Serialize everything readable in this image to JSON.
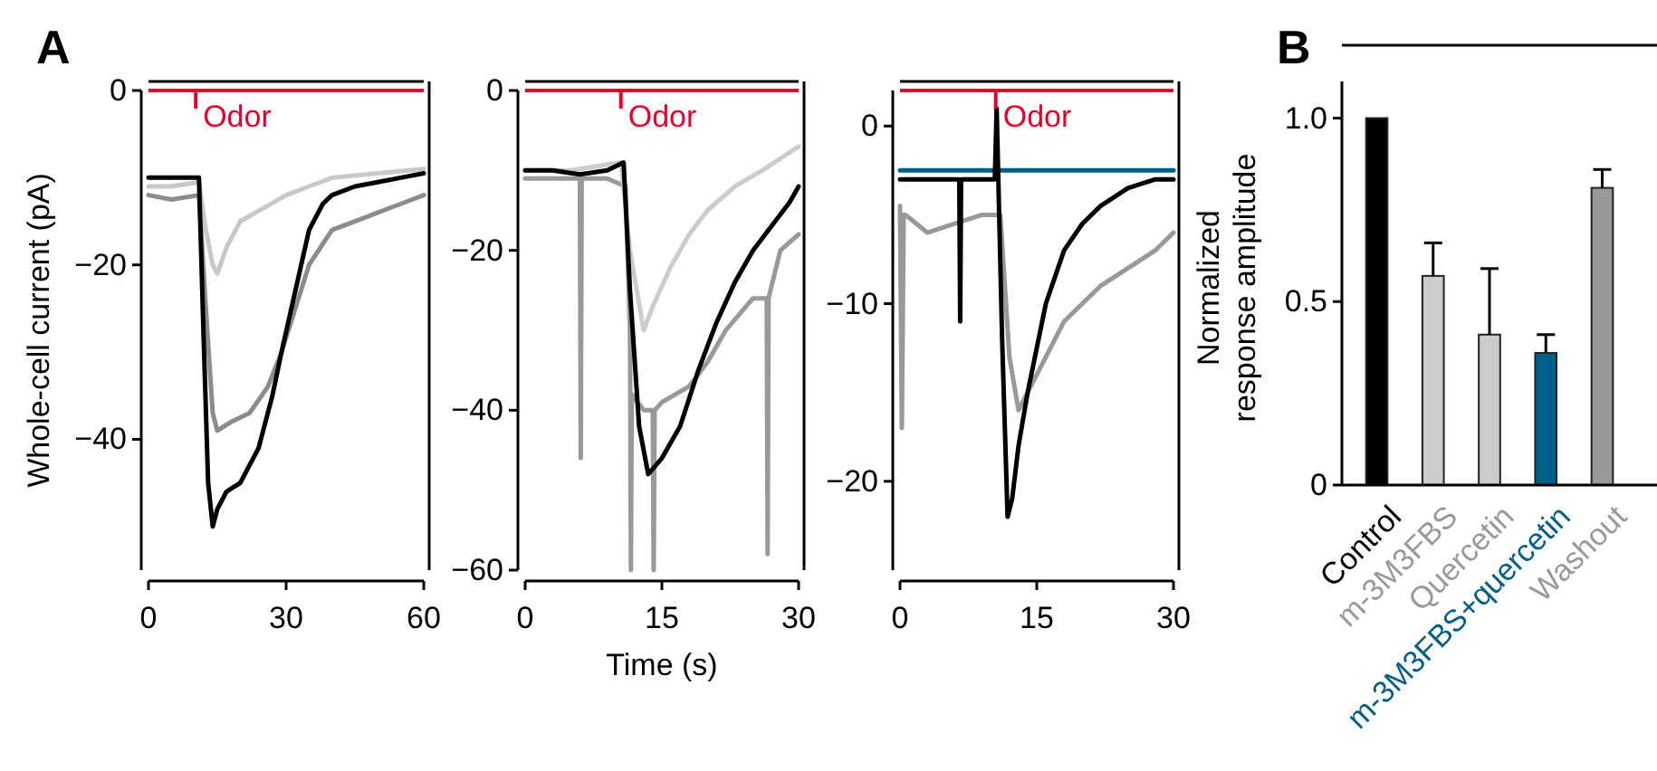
{
  "chart_data": [
    {
      "type": "line",
      "ylabel": "Whole-cell current (pA)",
      "annotations": [
        "A"
      ],
      "xlim": [
        0,
        60
      ],
      "xticks": [
        0,
        30,
        60
      ],
      "ylim": [
        -55,
        0
      ],
      "yticks": [
        0,
        -20,
        -40
      ],
      "ref_lines": [
        {
          "axis": "x",
          "value": 10.3,
          "label": "Odor",
          "color": "#e8002d"
        }
      ],
      "series": [
        {
          "color": "#8c8c8c",
          "x": [
            0,
            5,
            11,
            12.5,
            14,
            15,
            18,
            22,
            26,
            29,
            32,
            35,
            40,
            45,
            50,
            55,
            60
          ],
          "values": [
            -12,
            -12.5,
            -12,
            -25,
            -37,
            -39,
            -38,
            -37,
            -34,
            -30,
            -25,
            -20,
            -16,
            -15,
            -14,
            -13,
            -12
          ]
        },
        {
          "color": "#c8c8c8",
          "x": [
            0,
            5,
            11,
            12.5,
            14,
            15,
            17,
            20,
            25,
            30,
            35,
            40,
            50,
            60
          ],
          "values": [
            -11,
            -11,
            -10.5,
            -16,
            -20,
            -21,
            -18,
            -15,
            -13.5,
            -12,
            -11,
            -10,
            -9.5,
            -9
          ]
        },
        {
          "color": "#000000",
          "x": [
            0,
            5,
            11,
            12,
            13,
            14,
            15,
            17,
            20,
            24,
            27,
            29,
            32,
            35,
            38,
            40,
            45,
            50,
            55,
            60
          ],
          "values": [
            -10,
            -10,
            -10,
            -28,
            -45,
            -50,
            -48,
            -46,
            -45,
            -41,
            -35,
            -30,
            -23,
            -16,
            -13,
            -12,
            -11,
            -10.5,
            -10,
            -9.5
          ]
        }
      ]
    },
    {
      "type": "line",
      "xlabel": "Time (s)",
      "xlim": [
        0,
        30
      ],
      "xticks": [
        0,
        15,
        30
      ],
      "ylim": [
        -60,
        0
      ],
      "yticks": [
        0,
        -20,
        -40,
        -60
      ],
      "ref_lines": [
        {
          "axis": "x",
          "value": 10.5,
          "label": "Odor",
          "color": "#e8002d"
        }
      ],
      "series": [
        {
          "color": "#999999",
          "x": [
            0,
            3,
            6,
            6.1,
            6.2,
            9,
            11,
            11.5,
            11.6,
            11.7,
            13,
            14,
            14.1,
            14.2,
            15,
            18,
            20,
            22,
            25,
            26.5,
            26.6,
            26.7,
            28,
            30
          ],
          "values": [
            -11,
            -11,
            -11,
            -46,
            -11,
            -11,
            -12,
            -30,
            -60,
            -38,
            -40,
            -40,
            -60,
            -40,
            -39,
            -37,
            -34,
            -30,
            -26,
            -26,
            -58,
            -26,
            -20,
            -18
          ]
        },
        {
          "color": "#cccccc",
          "x": [
            0,
            5,
            10.5,
            11.5,
            13,
            14,
            16,
            18,
            20,
            23,
            26,
            30
          ],
          "values": [
            -10,
            -10,
            -9,
            -20,
            -30,
            -27,
            -22,
            -18,
            -15,
            -12,
            -10,
            -7
          ]
        },
        {
          "color": "#000000",
          "x": [
            0,
            3,
            6,
            9,
            10.8,
            11.5,
            12.5,
            13.5,
            15,
            17,
            19,
            21,
            23,
            25,
            27,
            29,
            30
          ],
          "values": [
            -10,
            -10,
            -10.5,
            -10,
            -9,
            -25,
            -42,
            -48,
            -46,
            -42,
            -35,
            -29,
            -24,
            -20,
            -17,
            -14,
            -12
          ]
        }
      ]
    },
    {
      "type": "line",
      "xlim": [
        0,
        30
      ],
      "xticks": [
        0,
        15,
        30
      ],
      "ylim": [
        -25,
        2
      ],
      "yticks": [
        0,
        -10,
        -20
      ],
      "ref_lines": [
        {
          "axis": "x",
          "value": 10.5,
          "label": "Odor",
          "color": "#e8002d"
        }
      ],
      "series": [
        {
          "color": "#999999",
          "x": [
            0,
            0.2,
            0.4,
            0.6,
            3,
            6,
            9,
            11,
            12,
            13,
            14,
            16,
            18,
            20,
            22,
            25,
            28,
            30
          ],
          "values": [
            -4.5,
            -17,
            -5,
            -5,
            -6,
            -5.5,
            -5,
            -5,
            -13,
            -16,
            -15,
            -13,
            -11,
            -10,
            -9,
            -8,
            -7,
            -6
          ]
        },
        {
          "color": "#005f87",
          "x": [
            0,
            5,
            10,
            15,
            20,
            25,
            30
          ],
          "values": [
            -2.5,
            -2.5,
            -2.5,
            -2.5,
            -2.5,
            -2.5,
            -2.5
          ]
        },
        {
          "color": "#000000",
          "x": [
            0,
            3,
            6.5,
            6.6,
            6.7,
            9,
            10.4,
            10.6,
            11.2,
            11.8,
            12.3,
            13,
            14,
            16,
            18,
            20,
            22,
            25,
            28,
            30
          ],
          "values": [
            -3,
            -3,
            -3,
            -11,
            -3,
            -3,
            -3,
            1,
            -12,
            -22,
            -21,
            -18,
            -15,
            -10,
            -7,
            -5.5,
            -4.5,
            -3.5,
            -3,
            -3
          ]
        }
      ]
    },
    {
      "type": "bar",
      "ylabel": "Normalized\nresponse amplitude",
      "annotations": [
        "B"
      ],
      "categories": [
        "Control",
        "m-3M3FBS",
        "Quercetin",
        "m-3M3FBS+quercetin",
        "Washout"
      ],
      "values": [
        1.0,
        0.57,
        0.41,
        0.36,
        0.81
      ],
      "colors": [
        "#000000",
        "#cccccc",
        "#cccccc",
        "#005f87",
        "#999999"
      ],
      "errors": [
        null,
        [
          0.57,
          0.66
        ],
        [
          0.41,
          0.59
        ],
        [
          0.36,
          0.41
        ],
        [
          0.81,
          0.86
        ]
      ],
      "ylim": [
        0,
        1.1
      ],
      "yticks": [
        0,
        {
          "value": 0.5,
          "label": "0.5"
        },
        {
          "value": 1.0,
          "label": "1.0"
        }
      ]
    }
  ]
}
